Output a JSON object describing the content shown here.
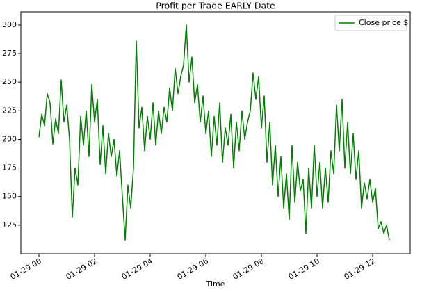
{
  "chart_data": {
    "type": "line",
    "title": "Profit per Trade EARLY Date",
    "x_label": "Time",
    "x": [
      0,
      0.1,
      0.2,
      0.3,
      0.4,
      0.5,
      0.6,
      0.7,
      0.8,
      0.9,
      1,
      1.1,
      1.2,
      1.3,
      1.4,
      1.5,
      1.6,
      1.7,
      1.8,
      1.9,
      2,
      2.1,
      2.2,
      2.3,
      2.4,
      2.5,
      2.6,
      2.7,
      2.8,
      2.9,
      3,
      3.1,
      3.2,
      3.3,
      3.4,
      3.5,
      3.6,
      3.7,
      3.8,
      3.9,
      4,
      4.1,
      4.2,
      4.3,
      4.4,
      4.5,
      4.6,
      4.7,
      4.8,
      4.9,
      5,
      5.1,
      5.2,
      5.3,
      5.4,
      5.5,
      5.6,
      5.7,
      5.8,
      5.9,
      6,
      6.1,
      6.2,
      6.3,
      6.4,
      6.5,
      6.6,
      6.7,
      6.8,
      6.9,
      7,
      7.1,
      7.2,
      7.3,
      7.4,
      7.5,
      7.6,
      7.7,
      7.8,
      7.9,
      8,
      8.1,
      8.2,
      8.3,
      8.4,
      8.5,
      8.6,
      8.7,
      8.8,
      8.9,
      9,
      9.1,
      9.2,
      9.3,
      9.4,
      9.5,
      9.6,
      9.7,
      9.8,
      9.9,
      10,
      10.1,
      10.2,
      10.3,
      10.4,
      10.5,
      10.6,
      10.7,
      10.8,
      10.9,
      11,
      11.1,
      11.2,
      11.3,
      11.4,
      11.5,
      11.6,
      11.7,
      11.8,
      11.9,
      12,
      12.1,
      12.2,
      12.3,
      12.4,
      12.5,
      12.6
    ],
    "series": [
      {
        "name": "Close price $",
        "color": "#008000",
        "values": [
          202,
          222,
          212,
          240,
          232,
          196,
          218,
          205,
          252,
          215,
          230,
          200,
          132,
          175,
          160,
          220,
          195,
          225,
          185,
          248,
          215,
          235,
          178,
          212,
          170,
          205,
          185,
          200,
          168,
          190,
          150,
          112,
          160,
          140,
          175,
          286,
          210,
          228,
          190,
          220,
          200,
          232,
          195,
          225,
          205,
          228,
          215,
          245,
          225,
          262,
          240,
          255,
          265,
          300,
          250,
          272,
          232,
          248,
          215,
          238,
          205,
          225,
          185,
          220,
          195,
          232,
          180,
          210,
          195,
          222,
          175,
          215,
          190,
          225,
          200,
          215,
          225,
          258,
          235,
          255,
          210,
          238,
          180,
          215,
          160,
          195,
          150,
          185,
          140,
          170,
          130,
          195,
          145,
          180,
          155,
          165,
          118,
          175,
          140,
          195,
          150,
          180,
          140,
          175,
          145,
          190,
          170,
          230,
          190,
          235,
          175,
          215,
          170,
          205,
          165,
          190,
          140,
          162,
          148,
          165,
          145,
          157,
          122,
          128,
          118,
          125,
          112
        ]
      }
    ],
    "xlim": [
      -0.65,
      13.35
    ],
    "ylim": [
      100,
      311.5
    ],
    "xticks": [
      {
        "value": 0,
        "label": "01-29 00"
      },
      {
        "value": 2,
        "label": "01-29 02"
      },
      {
        "value": 4,
        "label": "01-29 04"
      },
      {
        "value": 6,
        "label": "01-29 06"
      },
      {
        "value": 8,
        "label": "01-29 08"
      },
      {
        "value": 10,
        "label": "01-29 10"
      },
      {
        "value": 12,
        "label": "01-29 12"
      }
    ],
    "yticks": [
      125,
      150,
      175,
      200,
      225,
      250,
      275,
      300
    ],
    "legend": "upper right"
  }
}
